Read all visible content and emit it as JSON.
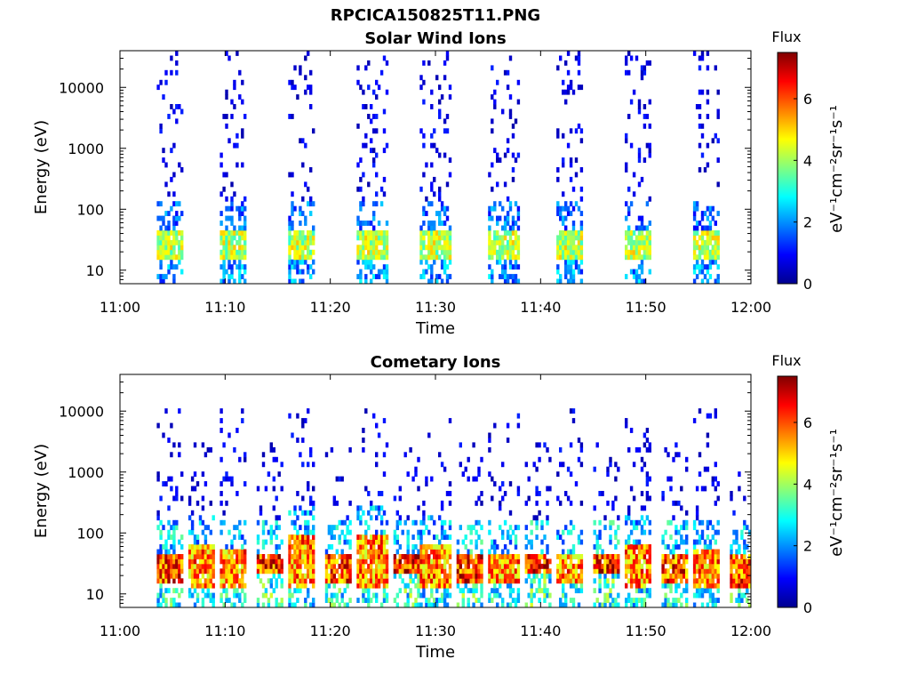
{
  "figure_title": "RPCICA150825T11.PNG",
  "chart_data": [
    {
      "type": "heatmap",
      "title": "Solar Wind Ions",
      "xlabel": "Time",
      "ylabel": "Energy (eV)",
      "x_ticks": [
        "11:00",
        "11:10",
        "11:20",
        "11:30",
        "11:40",
        "11:50",
        "12:00"
      ],
      "xlim": [
        "11:00",
        "12:00"
      ],
      "y_scale": "log",
      "y_ticks": [
        "10",
        "100",
        "1000",
        "10000"
      ],
      "ylim": [
        6,
        40000
      ],
      "colorbar": {
        "title": "Flux",
        "label": "eV⁻¹cm⁻²sr⁻¹s⁻¹",
        "ticks": [
          "0",
          "2",
          "4",
          "6"
        ],
        "range": [
          0,
          7.5
        ],
        "colormap": "jet"
      },
      "bursts": [
        {
          "start": "11:03.5",
          "end": "11:06.0",
          "core_energy": [
            15,
            40
          ],
          "core_flux": 4.5,
          "sparse_max_energy": 40000
        },
        {
          "start": "11:09.5",
          "end": "11:12.0",
          "core_energy": [
            15,
            40
          ],
          "core_flux": 4.5,
          "sparse_max_energy": 40000
        },
        {
          "start": "11:16.0",
          "end": "11:18.5",
          "core_energy": [
            15,
            40
          ],
          "core_flux": 4.5,
          "sparse_max_energy": 40000
        },
        {
          "start": "11:22.5",
          "end": "11:25.5",
          "core_energy": [
            15,
            40
          ],
          "core_flux": 4.5,
          "sparse_max_energy": 40000
        },
        {
          "start": "11:28.5",
          "end": "11:31.5",
          "core_energy": [
            15,
            40
          ],
          "core_flux": 4.5,
          "sparse_max_energy": 40000
        },
        {
          "start": "11:35.0",
          "end": "11:38.0",
          "core_energy": [
            15,
            40
          ],
          "core_flux": 4.5,
          "sparse_max_energy": 40000
        },
        {
          "start": "11:41.5",
          "end": "11:44.0",
          "core_energy": [
            15,
            40
          ],
          "core_flux": 4.5,
          "sparse_max_energy": 40000
        },
        {
          "start": "11:48.0",
          "end": "11:50.5",
          "core_energy": [
            15,
            40
          ],
          "core_flux": 4.5,
          "sparse_max_energy": 40000
        },
        {
          "start": "11:54.5",
          "end": "11:57.0",
          "core_energy": [
            15,
            40
          ],
          "core_flux": 4.5,
          "sparse_max_energy": 40000
        }
      ]
    },
    {
      "type": "heatmap",
      "title": "Cometary Ions",
      "xlabel": "Time",
      "ylabel": "Energy (eV)",
      "x_ticks": [
        "11:00",
        "11:10",
        "11:20",
        "11:30",
        "11:40",
        "11:50",
        "12:00"
      ],
      "xlim": [
        "11:00",
        "12:00"
      ],
      "y_scale": "log",
      "y_ticks": [
        "10",
        "100",
        "1000",
        "10000"
      ],
      "ylim": [
        6,
        40000
      ],
      "colorbar": {
        "title": "Flux",
        "label": "eV⁻¹cm⁻²sr⁻¹s⁻¹",
        "ticks": [
          "0",
          "2",
          "4",
          "6"
        ],
        "range": [
          0,
          7.5
        ],
        "colormap": "jet"
      },
      "bursts": [
        {
          "start": "11:03.5",
          "end": "11:06.0",
          "core_energy": [
            15,
            45
          ],
          "core_flux": 6.5,
          "sparse_max_energy": 10000
        },
        {
          "start": "11:06.5",
          "end": "11:09.0",
          "core_energy": [
            12,
            60
          ],
          "core_flux": 6.0,
          "sparse_max_energy": 3000
        },
        {
          "start": "11:09.5",
          "end": "11:12.0",
          "core_energy": [
            12,
            50
          ],
          "core_flux": 6.0,
          "sparse_max_energy": 10000
        },
        {
          "start": "11:13.0",
          "end": "11:15.5",
          "core_energy": [
            20,
            45
          ],
          "core_flux": 6.8,
          "sparse_max_energy": 3000
        },
        {
          "start": "11:16.0",
          "end": "11:18.5",
          "core_energy": [
            12,
            80
          ],
          "core_flux": 6.0,
          "sparse_max_energy": 10000
        },
        {
          "start": "11:19.5",
          "end": "11:22.0",
          "core_energy": [
            15,
            45
          ],
          "core_flux": 6.5,
          "sparse_max_energy": 3000
        },
        {
          "start": "11:22.5",
          "end": "11:25.5",
          "core_energy": [
            12,
            80
          ],
          "core_flux": 6.0,
          "sparse_max_energy": 10000
        },
        {
          "start": "11:26.0",
          "end": "11:28.5",
          "core_energy": [
            20,
            45
          ],
          "core_flux": 6.8,
          "sparse_max_energy": 3000
        },
        {
          "start": "11:28.5",
          "end": "11:31.5",
          "core_energy": [
            12,
            60
          ],
          "core_flux": 6.0,
          "sparse_max_energy": 10000
        },
        {
          "start": "11:32.0",
          "end": "11:34.5",
          "core_energy": [
            15,
            45
          ],
          "core_flux": 6.8,
          "sparse_max_energy": 3000
        },
        {
          "start": "11:35.0",
          "end": "11:38.0",
          "core_energy": [
            15,
            45
          ],
          "core_flux": 6.0,
          "sparse_max_energy": 10000
        },
        {
          "start": "11:38.5",
          "end": "11:41.0",
          "core_energy": [
            20,
            45
          ],
          "core_flux": 6.8,
          "sparse_max_energy": 3000
        },
        {
          "start": "11:41.5",
          "end": "11:44.0",
          "core_energy": [
            15,
            45
          ],
          "core_flux": 6.0,
          "sparse_max_energy": 10000
        },
        {
          "start": "11:45.0",
          "end": "11:47.5",
          "core_energy": [
            20,
            45
          ],
          "core_flux": 6.8,
          "sparse_max_energy": 3000
        },
        {
          "start": "11:48.0",
          "end": "11:50.5",
          "core_energy": [
            12,
            60
          ],
          "core_flux": 6.0,
          "sparse_max_energy": 10000
        },
        {
          "start": "11:51.5",
          "end": "11:54.0",
          "core_energy": [
            15,
            45
          ],
          "core_flux": 6.5,
          "sparse_max_energy": 3000
        },
        {
          "start": "11:54.5",
          "end": "11:57.0",
          "core_energy": [
            12,
            50
          ],
          "core_flux": 6.0,
          "sparse_max_energy": 10000
        },
        {
          "start": "11:58.0",
          "end": "12:00.0",
          "core_energy": [
            12,
            45
          ],
          "core_flux": 6.5,
          "sparse_max_energy": 1000
        }
      ]
    }
  ]
}
